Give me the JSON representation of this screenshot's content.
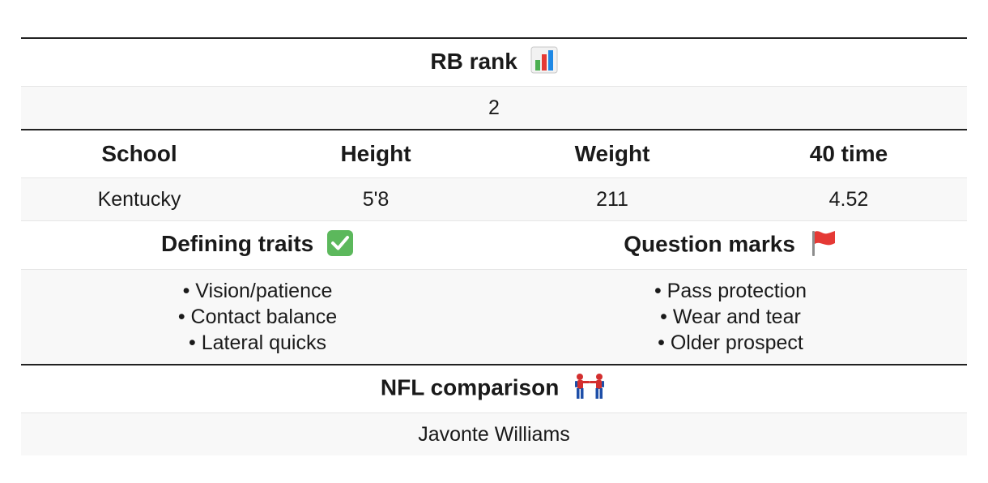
{
  "rb_rank": {
    "label": "RB rank",
    "icon": "bar-chart-icon",
    "value": "2"
  },
  "measurables": {
    "headers": [
      "School",
      "Height",
      "Weight",
      "40 time"
    ],
    "values": [
      "Kentucky",
      "5'8",
      "211",
      "4.52"
    ]
  },
  "traits": {
    "defining_label": "Defining traits",
    "defining_icon": "check-mark-icon",
    "question_label": "Question marks",
    "question_icon": "red-flag-icon",
    "defining": [
      "• Vision/patience",
      "• Contact balance",
      "• Lateral quicks"
    ],
    "questions": [
      "• Pass protection",
      "• Wear and tear",
      "• Older prospect"
    ]
  },
  "comparison": {
    "label": "NFL comparison",
    "icon": "spider-man-pointing-icon",
    "value": "Javonte Williams"
  },
  "colors": {
    "rule": "#222222",
    "light_rule": "#e6e6e6",
    "stripe": "#f8f8f8",
    "check_green": "#5cb85c",
    "flag_red": "#e53935"
  }
}
